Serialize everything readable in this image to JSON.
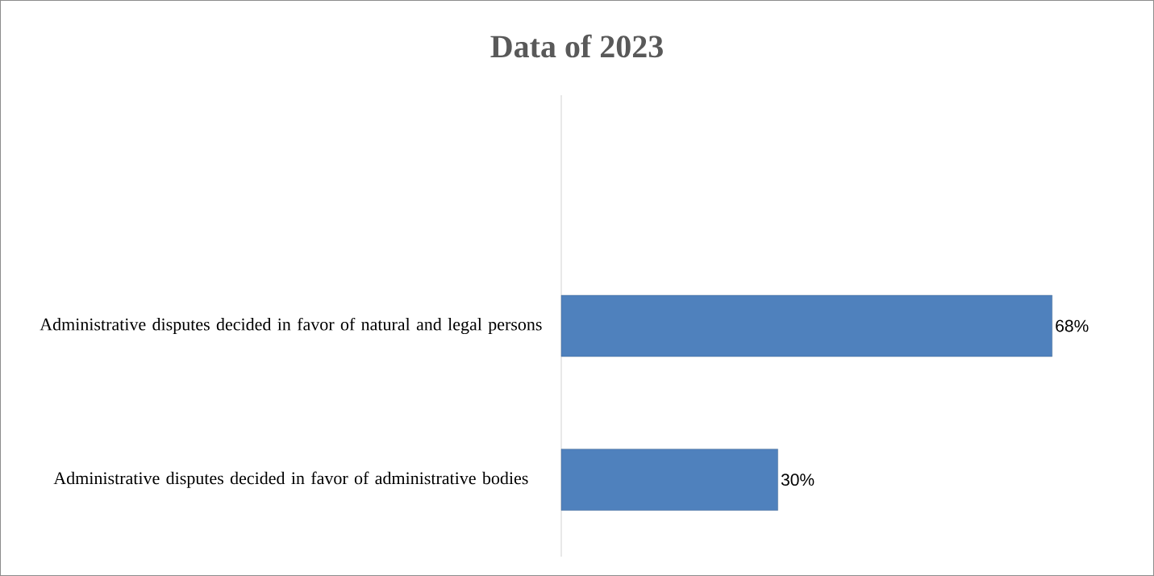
{
  "chart_data": {
    "type": "bar",
    "orientation": "horizontal",
    "title": "Data of 2023",
    "categories": [
      null,
      "Administrative disputes decided in favor of natural and legal persons",
      "Administrative disputes decided in favor of administrative bodies"
    ],
    "values": [
      null,
      68,
      30
    ],
    "value_labels": [
      null,
      "68%",
      "30%"
    ],
    "color": "#4f81bd",
    "tick_labels": "y"
  }
}
